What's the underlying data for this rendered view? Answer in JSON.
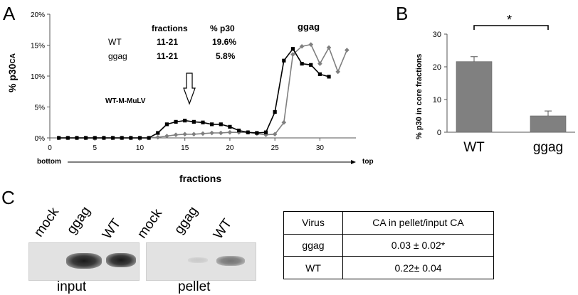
{
  "panels": {
    "a": "A",
    "b": "B",
    "c": "C"
  },
  "chart_data": [
    {
      "type": "line",
      "ylabel": "% p30",
      "ylabel_sup": "CA",
      "xlabel": "fractions",
      "x_left_label": "bottom",
      "x_right_label": "top",
      "xlim": [
        0,
        34
      ],
      "ylim": [
        0,
        20
      ],
      "xticks": [
        0,
        5,
        10,
        15,
        20,
        25,
        30
      ],
      "yticks": [
        "0%",
        "5%",
        "10%",
        "15%",
        "20%"
      ],
      "ytick_values": [
        0,
        5,
        10,
        15,
        20
      ],
      "x": [
        1,
        2,
        3,
        4,
        5,
        6,
        7,
        8,
        9,
        10,
        11,
        12,
        13,
        14,
        15,
        16,
        17,
        18,
        19,
        20,
        21,
        22,
        23,
        24,
        25,
        26,
        27,
        28,
        29,
        30,
        31,
        32,
        33
      ],
      "series": [
        {
          "name": "WT",
          "marker": "square",
          "color": "#000000",
          "values": [
            0,
            0,
            0,
            0,
            0,
            0,
            0,
            0,
            0,
            0,
            0,
            0.8,
            2.2,
            2.6,
            2.8,
            2.6,
            2.5,
            2.2,
            2.2,
            1.8,
            1.2,
            0.9,
            0.8,
            0.9,
            4.2,
            12.5,
            14.4,
            12,
            11.8,
            10.3,
            9.9,
            null,
            null
          ]
        },
        {
          "name": "ggag",
          "marker": "diamond",
          "color": "#7f7f7f",
          "values": [
            0,
            0,
            0,
            0,
            0,
            0,
            0,
            0,
            0,
            0,
            0,
            0.1,
            0.3,
            0.5,
            0.6,
            0.6,
            0.7,
            0.8,
            0.8,
            0.9,
            0.9,
            0.9,
            0.7,
            0.5,
            0.6,
            2.5,
            13.5,
            14.8,
            15.1,
            12,
            14.6,
            10.7,
            14.2
          ]
        }
      ],
      "table": {
        "headers": [
          "",
          "fractions",
          "% p30"
        ],
        "rows": [
          [
            "WT",
            "11-21",
            "19.6%"
          ],
          [
            "ggag",
            "11-21",
            "5.8%"
          ]
        ]
      },
      "annotations": {
        "ggag_label": "ggag",
        "strain_label": "WT-M-MuLV",
        "arrow_x": 15.5
      }
    },
    {
      "type": "bar",
      "ylabel": "% p30 in core fractions",
      "categories": [
        "WT",
        "ggag"
      ],
      "values": [
        21.6,
        5.0
      ],
      "errors": [
        1.5,
        1.5
      ],
      "ylim": [
        0,
        30
      ],
      "yticks": [
        0,
        10,
        20,
        30
      ],
      "bar_color": "#808080",
      "significance": "*"
    }
  ],
  "blots": {
    "input": {
      "label": "input",
      "lanes": [
        "mock",
        "ggag",
        "WT"
      ]
    },
    "pellet": {
      "label": "pellet",
      "lanes": [
        "mock",
        "ggag",
        "WT"
      ]
    }
  },
  "cell_table": {
    "headers": [
      "Virus",
      "CA in pellet/input CA"
    ],
    "rows": [
      [
        "ggag",
        "0.03 ± 0.02*"
      ],
      [
        "WT",
        "0.22± 0.04"
      ]
    ]
  }
}
